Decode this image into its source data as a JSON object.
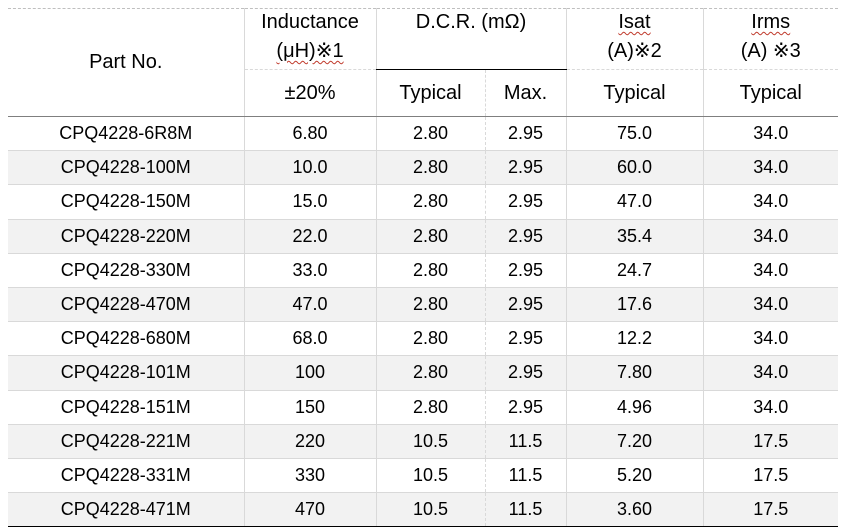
{
  "headers": {
    "part_no": "Part No.",
    "inductance_line1": "Inductance",
    "inductance_line2": "(μH)※1",
    "inductance_tol": "±20%",
    "dcr": "D.C.R. (mΩ)",
    "dcr_typical": "Typical",
    "dcr_max": "Max.",
    "isat_line1": "Isat",
    "isat_line2": "(A)※2",
    "isat_typical": "Typical",
    "irms_line1": "Irms",
    "irms_line2": "(A) ※3",
    "irms_typical": "Typical"
  },
  "rows": [
    {
      "part": "CPQ4228-6R8M",
      "inductance": "6.80",
      "dcr_typ": "2.80",
      "dcr_max": "2.95",
      "isat": "75.0",
      "irms": "34.0"
    },
    {
      "part": "CPQ4228-100M",
      "inductance": "10.0",
      "dcr_typ": "2.80",
      "dcr_max": "2.95",
      "isat": "60.0",
      "irms": "34.0"
    },
    {
      "part": "CPQ4228-150M",
      "inductance": "15.0",
      "dcr_typ": "2.80",
      "dcr_max": "2.95",
      "isat": "47.0",
      "irms": "34.0"
    },
    {
      "part": "CPQ4228-220M",
      "inductance": "22.0",
      "dcr_typ": "2.80",
      "dcr_max": "2.95",
      "isat": "35.4",
      "irms": "34.0"
    },
    {
      "part": "CPQ4228-330M",
      "inductance": "33.0",
      "dcr_typ": "2.80",
      "dcr_max": "2.95",
      "isat": "24.7",
      "irms": "34.0"
    },
    {
      "part": "CPQ4228-470M",
      "inductance": "47.0",
      "dcr_typ": "2.80",
      "dcr_max": "2.95",
      "isat": "17.6",
      "irms": "34.0"
    },
    {
      "part": "CPQ4228-680M",
      "inductance": "68.0",
      "dcr_typ": "2.80",
      "dcr_max": "2.95",
      "isat": "12.2",
      "irms": "34.0"
    },
    {
      "part": "CPQ4228-101M",
      "inductance": "100",
      "dcr_typ": "2.80",
      "dcr_max": "2.95",
      "isat": "7.80",
      "irms": "34.0"
    },
    {
      "part": "CPQ4228-151M",
      "inductance": "150",
      "dcr_typ": "2.80",
      "dcr_max": "2.95",
      "isat": "4.96",
      "irms": "34.0"
    },
    {
      "part": "CPQ4228-221M",
      "inductance": "220",
      "dcr_typ": "10.5",
      "dcr_max": "11.5",
      "isat": "7.20",
      "irms": "17.5"
    },
    {
      "part": "CPQ4228-331M",
      "inductance": "330",
      "dcr_typ": "10.5",
      "dcr_max": "11.5",
      "isat": "5.20",
      "irms": "17.5"
    },
    {
      "part": "CPQ4228-471M",
      "inductance": "470",
      "dcr_typ": "10.5",
      "dcr_max": "11.5",
      "isat": "3.60",
      "irms": "17.5"
    }
  ]
}
